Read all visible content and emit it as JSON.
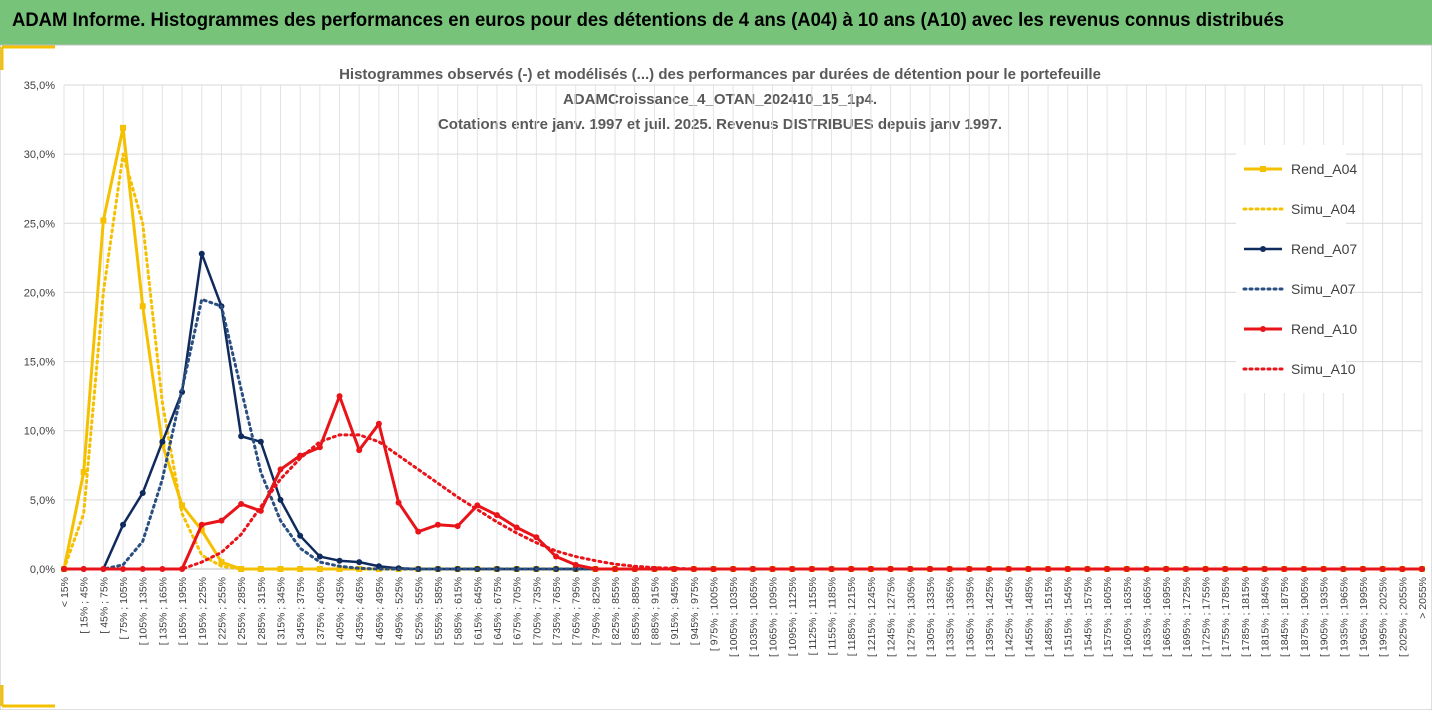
{
  "header": {
    "title": "ADAM Informe. Histogrammes des performances en euros pour des détentions de 4 ans (A04) à 10 ans (A10) avec les revenus connus distribués"
  },
  "chart_data": {
    "type": "line",
    "title": [
      "Histogrammes observés (-) et modélisés (...) des performances par durées de détention pour le portefeuille",
      "ADAMCroissance_4_OTAN_202410_15_1p4.",
      "Cotations entre janv. 1997 et juil. 2025. Revenus DISTRIBUES depuis janv 1997."
    ],
    "categories": [
      "< 15%",
      "[ 15% ; 45%",
      "[ 45% ; 75%",
      "[ 75% ; 105%",
      "[ 105% ; 135%",
      "[ 135% ; 165%",
      "[ 165% ; 195%",
      "[ 195% ; 225%",
      "[ 225% ; 255%",
      "[ 255% ; 285%",
      "[ 285% ; 315%",
      "[ 315% ; 345%",
      "[ 345% ; 375%",
      "[ 375% ; 405%",
      "[ 405% ; 435%",
      "[ 435% ; 465%",
      "[ 465% ; 495%",
      "[ 495% ; 525%",
      "[ 525% ; 555%",
      "[ 555% ; 585%",
      "[ 585% ; 615%",
      "[ 615% ; 645%",
      "[ 645% ; 675%",
      "[ 675% ; 705%",
      "[ 705% ; 735%",
      "[ 735% ; 765%",
      "[ 765% ; 795%",
      "[ 795% ; 825%",
      "[ 825% ; 855%",
      "[ 855% ; 885%",
      "[ 885% ; 915%",
      "[ 915% ; 945%",
      "[ 945% ; 975%",
      "[ 975% ; 1005%",
      "[ 1005% ; 1035%",
      "[ 1035% ; 1065%",
      "[ 1065% ; 1095%",
      "[ 1095% ; 1125%",
      "[ 1125% ; 1155%",
      "[ 1155% ; 1185%",
      "[ 1185% ; 1215%",
      "[ 1215% ; 1245%",
      "[ 1245% ; 1275%",
      "[ 1275% ; 1305%",
      "[ 1305% ; 1335%",
      "[ 1335% ; 1365%",
      "[ 1365% ; 1395%",
      "[ 1395% ; 1425%",
      "[ 1425% ; 1455%",
      "[ 1455% ; 1485%",
      "[ 1485% ; 1515%",
      "[ 1515% ; 1545%",
      "[ 1545% ; 1575%",
      "[ 1575% ; 1605%",
      "[ 1605% ; 1635%",
      "[ 1635% ; 1665%",
      "[ 1665% ; 1695%",
      "[ 1695% ; 1725%",
      "[ 1725% ; 1755%",
      "[ 1755% ; 1785%",
      "[ 1785% ; 1815%",
      "[ 1815% ; 1845%",
      "[ 1845% ; 1875%",
      "[ 1875% ; 1905%",
      "[ 1905% ; 1935%",
      "[ 1935% ; 1965%",
      "[ 1965% ; 1995%",
      "[ 1995% ; 2025%",
      "[ 2025% ; 2055%",
      "> 2055%"
    ],
    "series": [
      {
        "name": "Rend_A04",
        "color": "#f5c000",
        "dashed": false,
        "marker": "square",
        "width": 3,
        "values": [
          0,
          7,
          25.2,
          31.9,
          19,
          9,
          4.6,
          2.8,
          0.5,
          0,
          0,
          0,
          0,
          0,
          0,
          0,
          0,
          0,
          0,
          0,
          0,
          0,
          0,
          0,
          0,
          0,
          0,
          0,
          0,
          0,
          0,
          0,
          0,
          0,
          0,
          0,
          0,
          0,
          0,
          0,
          0,
          0,
          0,
          0,
          0,
          0,
          0,
          0,
          0,
          0,
          0,
          0,
          0,
          0,
          0,
          0,
          0,
          0,
          0,
          0,
          0,
          0,
          0,
          0,
          0,
          0,
          0,
          0,
          0,
          0
        ]
      },
      {
        "name": "Simu_A04",
        "color": "#f5c000",
        "dashed": true,
        "marker": null,
        "width": 3,
        "values": [
          0,
          4,
          20,
          30,
          25,
          12,
          4,
          1,
          0.2,
          0,
          0,
          0,
          0,
          0,
          0,
          0,
          0,
          0,
          0,
          0,
          0,
          0,
          0,
          0,
          0,
          0,
          0,
          0,
          0,
          0,
          0,
          0,
          0,
          0,
          0,
          0,
          0,
          0,
          0,
          0,
          0,
          0,
          0,
          0,
          0,
          0,
          0,
          0,
          0,
          0,
          0,
          0,
          0,
          0,
          0,
          0,
          0,
          0,
          0,
          0,
          0,
          0,
          0,
          0,
          0,
          0,
          0,
          0,
          0,
          0
        ]
      },
      {
        "name": "Rend_A07",
        "color": "#0f2a5c",
        "dashed": false,
        "marker": "circle",
        "width": 2.5,
        "values": [
          0,
          0,
          0,
          3.2,
          5.5,
          9.2,
          12.8,
          22.8,
          19,
          9.6,
          9.2,
          5,
          2.4,
          0.9,
          0.6,
          0.5,
          0.2,
          0.05,
          0,
          0,
          0,
          0,
          0,
          0,
          0,
          0,
          0,
          0,
          0,
          0,
          0,
          0,
          0,
          0,
          0,
          0,
          0,
          0,
          0,
          0,
          0,
          0,
          0,
          0,
          0,
          0,
          0,
          0,
          0,
          0,
          0,
          0,
          0,
          0,
          0,
          0,
          0,
          0,
          0,
          0,
          0,
          0,
          0,
          0,
          0,
          0,
          0,
          0,
          0,
          0
        ]
      },
      {
        "name": "Simu_A07",
        "color": "#2a4f80",
        "dashed": true,
        "marker": null,
        "width": 3,
        "values": [
          0,
          0,
          0,
          0.3,
          2,
          6.5,
          13,
          19.5,
          19,
          13,
          7,
          3.5,
          1.5,
          0.5,
          0.2,
          0.05,
          0,
          0,
          0,
          0,
          0,
          0,
          0,
          0,
          0,
          0,
          0,
          0,
          0,
          0,
          0,
          0,
          0,
          0,
          0,
          0,
          0,
          0,
          0,
          0,
          0,
          0,
          0,
          0,
          0,
          0,
          0,
          0,
          0,
          0,
          0,
          0,
          0,
          0,
          0,
          0,
          0,
          0,
          0,
          0,
          0,
          0,
          0,
          0,
          0,
          0,
          0,
          0,
          0,
          0
        ]
      },
      {
        "name": "Rend_A10",
        "color": "#e8141a",
        "dashed": false,
        "marker": "circle",
        "width": 3,
        "values": [
          0,
          0,
          0,
          0,
          0,
          0,
          0,
          3.2,
          3.5,
          4.7,
          4.2,
          7.2,
          8.2,
          8.8,
          12.5,
          8.6,
          10.5,
          4.8,
          2.7,
          3.2,
          3.1,
          4.6,
          3.9,
          3,
          2.3,
          0.9,
          0.3,
          0,
          0,
          0,
          0,
          0,
          0,
          0,
          0,
          0,
          0,
          0,
          0,
          0,
          0,
          0,
          0,
          0,
          0,
          0,
          0,
          0,
          0,
          0,
          0,
          0,
          0,
          0,
          0,
          0,
          0,
          0,
          0,
          0,
          0,
          0,
          0,
          0,
          0,
          0,
          0,
          0,
          0,
          0
        ]
      },
      {
        "name": "Simu_A10",
        "color": "#e8141a",
        "dashed": true,
        "marker": null,
        "width": 3,
        "values": [
          0,
          0,
          0,
          0,
          0,
          0,
          0,
          0.5,
          1.2,
          2.5,
          4.5,
          6.5,
          8,
          9.2,
          9.7,
          9.7,
          9.2,
          8.2,
          7.2,
          6.2,
          5.2,
          4.3,
          3.4,
          2.6,
          1.9,
          1.3,
          0.9,
          0.6,
          0.35,
          0.2,
          0.1,
          0.05,
          0,
          0,
          0,
          0,
          0,
          0,
          0,
          0,
          0,
          0,
          0,
          0,
          0,
          0,
          0,
          0,
          0,
          0,
          0,
          0,
          0,
          0,
          0,
          0,
          0,
          0,
          0,
          0,
          0,
          0,
          0,
          0,
          0,
          0,
          0,
          0,
          0,
          0
        ]
      }
    ],
    "ylim": [
      0,
      35
    ],
    "yticks": [
      {
        "value": 0,
        "label": "0,0%"
      },
      {
        "value": 5,
        "label": "5,0%"
      },
      {
        "value": 10,
        "label": "10,0%"
      },
      {
        "value": 15,
        "label": "15,0%"
      },
      {
        "value": 20,
        "label": "20,0%"
      },
      {
        "value": 25,
        "label": "25,0%"
      },
      {
        "value": 30,
        "label": "30,0%"
      },
      {
        "value": 35,
        "label": "35,0%"
      }
    ],
    "grid": true,
    "legend": "right"
  }
}
